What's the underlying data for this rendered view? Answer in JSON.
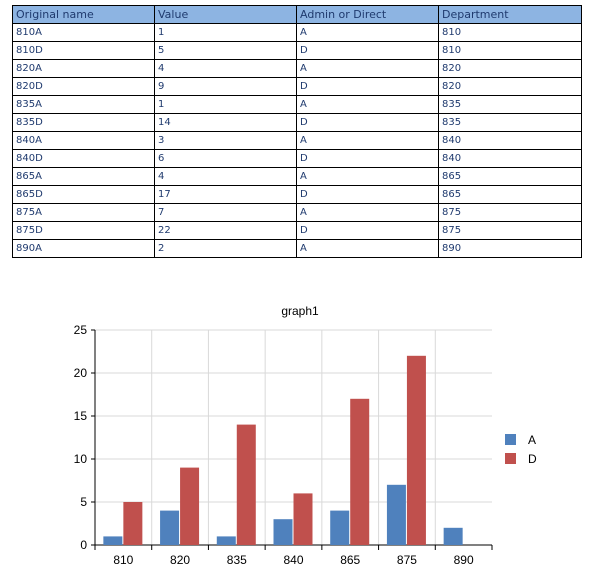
{
  "table": {
    "headers": [
      "Original name",
      "Value",
      "Admin or Direct",
      "Department"
    ],
    "rows": [
      [
        "810A",
        "1",
        "A",
        "810"
      ],
      [
        "810D",
        "5",
        "D",
        "810"
      ],
      [
        "820A",
        "4",
        "A",
        "820"
      ],
      [
        "820D",
        "9",
        "D",
        "820"
      ],
      [
        "835A",
        "1",
        "A",
        "835"
      ],
      [
        "835D",
        "14",
        "D",
        "835"
      ],
      [
        "840A",
        "3",
        "A",
        "840"
      ],
      [
        "840D",
        "6",
        "D",
        "840"
      ],
      [
        "865A",
        "4",
        "A",
        "865"
      ],
      [
        "865D",
        "17",
        "D",
        "865"
      ],
      [
        "875A",
        "7",
        "A",
        "875"
      ],
      [
        "875D",
        "22",
        "D",
        "875"
      ],
      [
        "890A",
        "2",
        "A",
        "890"
      ]
    ]
  },
  "chart_data": {
    "type": "bar",
    "title": "graph1",
    "categories": [
      "810",
      "820",
      "835",
      "840",
      "865",
      "875",
      "890"
    ],
    "series": [
      {
        "name": "A",
        "color": "#4f81bd",
        "values": [
          1,
          4,
          1,
          3,
          4,
          7,
          2
        ]
      },
      {
        "name": "D",
        "color": "#c0504d",
        "values": [
          5,
          9,
          14,
          6,
          17,
          22,
          null
        ]
      }
    ],
    "ylim": [
      0,
      25
    ],
    "yticks": [
      0,
      5,
      10,
      15,
      20,
      25
    ],
    "grid": true,
    "legend": "right"
  }
}
